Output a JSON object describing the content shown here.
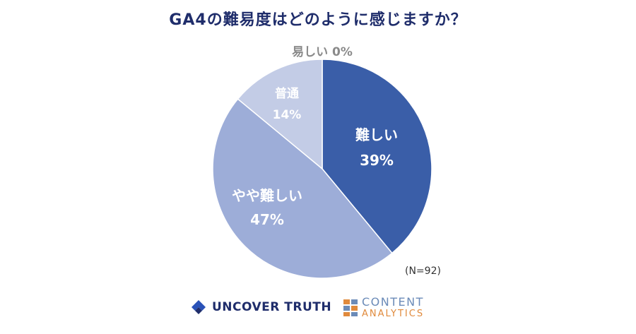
{
  "header": {
    "title": "GA4の難易度はどのように感じますか？"
  },
  "chart_data": {
    "type": "pie",
    "title": "GA4の難易度はどのように感じますか？",
    "slices": [
      {
        "label": "難しい",
        "value": 39,
        "value_label": "39%",
        "color": "#3a5ea8"
      },
      {
        "label": "やや難しい",
        "value": 47,
        "value_label": "47%",
        "color": "#9dadd8"
      },
      {
        "label": "普通",
        "value": 14,
        "value_label": "14%",
        "color": "#c3cce6"
      },
      {
        "label": "易しい",
        "value": 0,
        "value_label": "0%",
        "color": "#dde2f0"
      }
    ],
    "start_angle_deg": 0,
    "direction": "clockwise"
  },
  "footer": {
    "sample_size": "(N=92)",
    "logo_left": "UNCOVER TRUTH",
    "logo_right_line1": "CONTENT",
    "logo_right_line2": "ANALYTICS"
  }
}
